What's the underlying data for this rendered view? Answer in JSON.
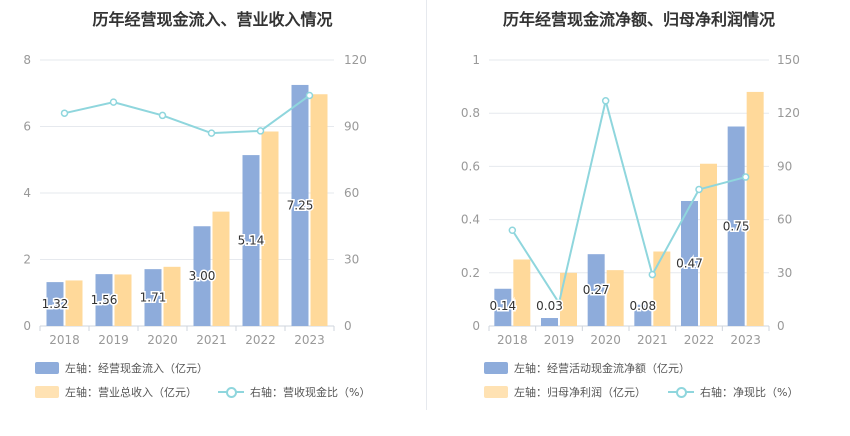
{
  "colors": {
    "bar1": "#8eacdb",
    "bar2": "#ffd99a",
    "line": "#8fd6dd",
    "grid": "#e6e9ee",
    "axis_text": "#999999",
    "label_text": "#333333"
  },
  "charts": [
    {
      "title": "历年经营现金流入、营业收入情况",
      "legend": {
        "bar1": "左轴：经营现金流入（亿元）",
        "bar2": "左轴：营业总收入（亿元）",
        "line": "右轴：营收现金比（%）"
      }
    },
    {
      "title": "历年经营现金流净额、归母净利润情况",
      "legend": {
        "bar1": "左轴：经营活动现金流净额（亿元）",
        "bar2": "左轴：归母净利润（亿元）",
        "line": "右轴：净现比（%）"
      }
    }
  ],
  "chart_data": [
    {
      "type": "bar",
      "title": "历年经营现金流入、营业收入情况",
      "categories": [
        "2018",
        "2019",
        "2020",
        "2021",
        "2022",
        "2023"
      ],
      "series": [
        {
          "name": "左轴：经营现金流入（亿元）",
          "axis": "left",
          "type": "bar",
          "values": [
            1.32,
            1.56,
            1.71,
            3.0,
            5.14,
            7.25
          ],
          "labels": [
            "1.32",
            "1.56",
            "1.71",
            "3.00",
            "5.14",
            "7.25"
          ]
        },
        {
          "name": "左轴：营业总收入（亿元）",
          "axis": "left",
          "type": "bar",
          "values": [
            1.37,
            1.55,
            1.78,
            3.44,
            5.85,
            6.97
          ]
        },
        {
          "name": "右轴：营收现金比（%）",
          "axis": "right",
          "type": "line",
          "values": [
            96,
            101,
            95,
            87,
            88,
            104
          ]
        }
      ],
      "left_axis": {
        "min": 0,
        "max": 8,
        "ticks": [
          "0",
          "2",
          "4",
          "6",
          "8"
        ]
      },
      "right_axis": {
        "min": 0,
        "max": 120,
        "ticks": [
          "0",
          "30",
          "60",
          "90",
          "120"
        ]
      },
      "grid": true,
      "legend_position": "bottom"
    },
    {
      "type": "bar",
      "title": "历年经营现金流净额、归母净利润情况",
      "categories": [
        "2018",
        "2019",
        "2020",
        "2021",
        "2022",
        "2023"
      ],
      "series": [
        {
          "name": "左轴：经营活动现金流净额（亿元）",
          "axis": "left",
          "type": "bar",
          "values": [
            0.14,
            0.03,
            0.27,
            0.08,
            0.47,
            0.75
          ],
          "labels": [
            "0.14",
            "0.03",
            "0.27",
            "0.08",
            "0.47",
            "0.75"
          ]
        },
        {
          "name": "左轴：归母净利润（亿元）",
          "axis": "left",
          "type": "bar",
          "values": [
            0.25,
            0.2,
            0.21,
            0.28,
            0.61,
            0.88
          ]
        },
        {
          "name": "右轴：净现比（%）",
          "axis": "right",
          "type": "line",
          "values": [
            54,
            13,
            127,
            29,
            77,
            84
          ]
        }
      ],
      "left_axis": {
        "min": 0,
        "max": 1,
        "ticks": [
          "0",
          "0.2",
          "0.4",
          "0.6",
          "0.8",
          "1"
        ]
      },
      "right_axis": {
        "min": 0,
        "max": 150,
        "ticks": [
          "0",
          "30",
          "60",
          "90",
          "120",
          "150"
        ]
      },
      "grid": true,
      "legend_position": "bottom"
    }
  ]
}
